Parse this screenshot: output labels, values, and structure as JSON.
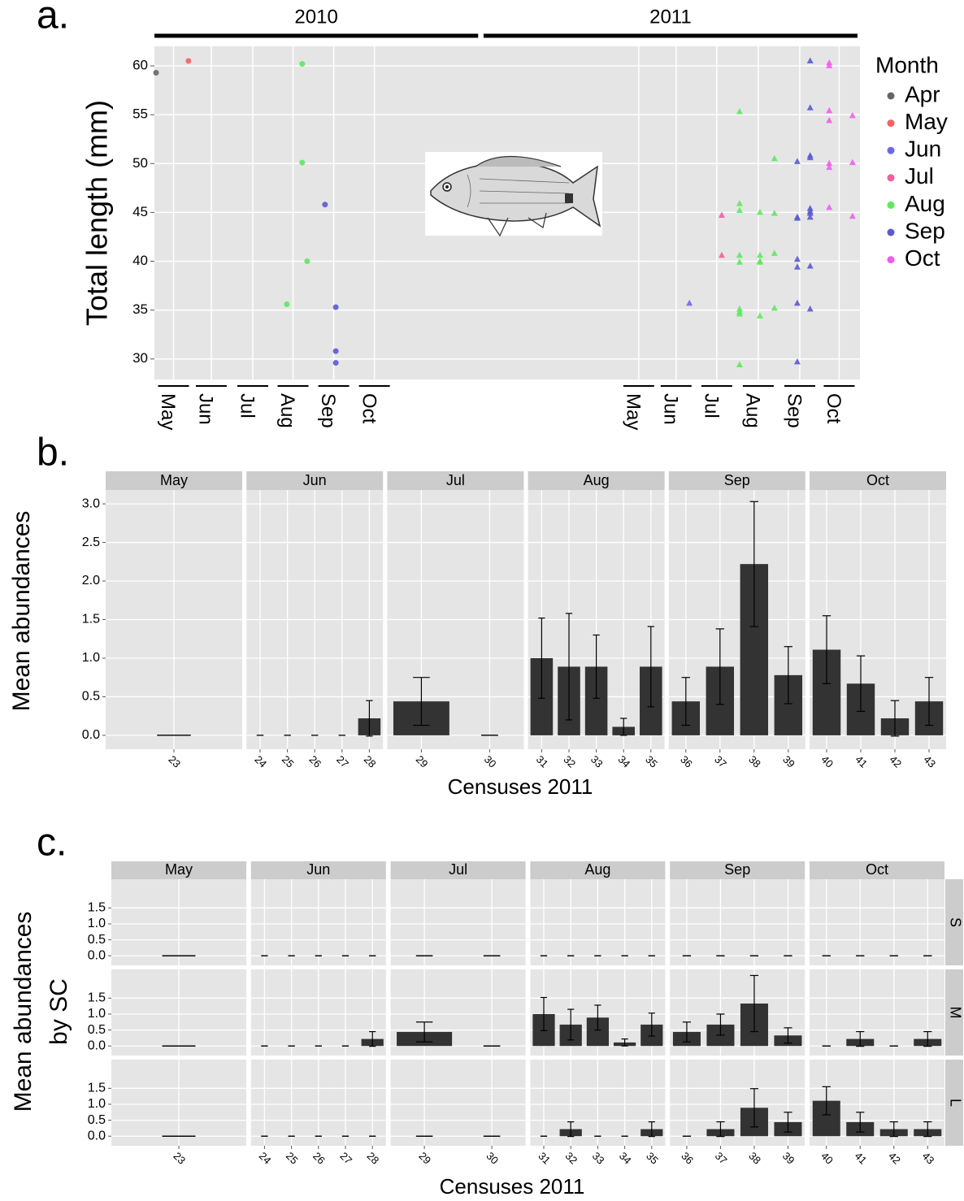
{
  "chart_data": [
    {
      "type": "scatter",
      "panel_label": "a.",
      "ylabel": "Total length (mm)",
      "legend_title": "Month",
      "xlim": [
        0,
        17
      ],
      "ylim": [
        27.9,
        62
      ],
      "yticks": [
        30,
        35,
        40,
        45,
        50,
        55,
        60
      ],
      "grid": true,
      "years": [
        {
          "label": "2010",
          "start": 0,
          "end": 7.8
        },
        {
          "label": "2011",
          "start": 7.93,
          "end": 16.94
        }
      ],
      "xticks": [
        {
          "value": 0.46,
          "label": "May"
        },
        {
          "value": 1.37,
          "label": "Jun"
        },
        {
          "value": 2.37,
          "label": "Jul"
        },
        {
          "value": 3.34,
          "label": "Aug"
        },
        {
          "value": 4.32,
          "label": "Sep"
        },
        {
          "value": 5.3,
          "label": "Oct"
        },
        {
          "value": 11.67,
          "label": "May"
        },
        {
          "value": 12.57,
          "label": "Jun"
        },
        {
          "value": 13.55,
          "label": "Jul"
        },
        {
          "value": 14.55,
          "label": "Aug"
        },
        {
          "value": 15.55,
          "label": "Sep"
        },
        {
          "value": 16.5,
          "label": "Oct"
        }
      ],
      "series": [
        {
          "name": "Apr",
          "color": "#666666",
          "x": [
            0.04
          ],
          "values": [
            59.3
          ]
        },
        {
          "name": "May",
          "color": "#f06464",
          "x": [
            0.82
          ],
          "values": [
            60.5
          ]
        },
        {
          "name": "Jun",
          "color": "#6a6ae8",
          "x": [
            12.89
          ],
          "values": [
            35.7
          ]
        },
        {
          "name": "Jul",
          "color": "#f0609c",
          "x": [
            13.67,
            13.67
          ],
          "values": [
            44.7,
            40.6
          ]
        },
        {
          "name": "Aug",
          "color": "#5ee85e",
          "x": [
            3.56,
            3.56,
            3.68,
            3.19,
            14.1,
            14.1,
            14.1,
            14.1,
            14.1,
            14.1,
            14.1,
            14.1,
            14.1,
            14.59,
            14.59,
            14.59,
            14.59,
            14.59,
            14.94,
            14.94,
            14.94,
            14.94
          ],
          "values": [
            60.2,
            50.1,
            40.0,
            35.6,
            55.3,
            45.9,
            45.2,
            40.6,
            39.9,
            35.1,
            34.8,
            34.6,
            29.4,
            45.0,
            40.6,
            40.0,
            39.9,
            34.4,
            50.5,
            44.9,
            40.8,
            35.2
          ]
        },
        {
          "name": "Sep",
          "color": "#5a5ad0",
          "x": [
            4.11,
            4.37,
            4.37,
            4.37,
            15.8,
            15.8,
            15.8,
            15.8,
            15.8,
            15.8,
            15.8,
            15.8,
            15.8,
            15.8,
            15.49,
            15.49,
            15.49,
            15.49,
            15.49,
            15.49,
            15.49
          ],
          "values": [
            45.8,
            35.3,
            30.8,
            29.6,
            60.5,
            55.7,
            50.8,
            50.6,
            45.4,
            45.1,
            44.9,
            44.5,
            39.5,
            35.1,
            50.2,
            44.5,
            44.4,
            40.2,
            39.4,
            35.7,
            29.7
          ]
        },
        {
          "name": "Oct",
          "color": "#ee5eee",
          "x": [
            16.26,
            16.26,
            16.26,
            16.26,
            16.26,
            16.26,
            16.26,
            16.82,
            16.82,
            16.82
          ],
          "values": [
            60.3,
            60.0,
            55.4,
            54.4,
            50.0,
            49.6,
            45.5,
            54.9,
            50.1,
            44.6
          ]
        }
      ]
    },
    {
      "type": "bar",
      "panel_label": "b.",
      "ylabel": "Mean abundances",
      "xlabel": "Censuses 2011",
      "ylim": [
        -0.18,
        3.18
      ],
      "yticks": [
        {
          "value": 0,
          "label": "0.0"
        },
        0.5,
        {
          "value": 1,
          "label": "1.0"
        },
        1.5,
        {
          "value": 2,
          "label": "2.0"
        },
        2.5,
        {
          "value": 3,
          "label": "3.0"
        }
      ],
      "grid": true,
      "facets": [
        {
          "name": "May",
          "categories": [
            "23"
          ],
          "values": [
            0
          ],
          "errors": [
            0
          ]
        },
        {
          "name": "Jun",
          "categories": [
            "24",
            "25",
            "26",
            "27",
            "28"
          ],
          "values": [
            0,
            0,
            0,
            0,
            0.22
          ],
          "errors": [
            0,
            0,
            0,
            0,
            0.23
          ]
        },
        {
          "name": "Jul",
          "categories": [
            "29",
            "30"
          ],
          "values": [
            0.44,
            0
          ],
          "errors": [
            0.31,
            0
          ]
        },
        {
          "name": "Aug",
          "categories": [
            "31",
            "32",
            "33",
            "34",
            "35"
          ],
          "values": [
            1.0,
            0.89,
            0.89,
            0.11,
            0.89
          ],
          "errors": [
            0.52,
            0.69,
            0.41,
            0.11,
            0.52
          ]
        },
        {
          "name": "Sep",
          "categories": [
            "36",
            "37",
            "38",
            "39"
          ],
          "values": [
            0.44,
            0.89,
            2.22,
            0.78
          ],
          "errors": [
            0.31,
            0.49,
            0.81,
            0.37
          ]
        },
        {
          "name": "Oct",
          "categories": [
            "40",
            "41",
            "42",
            "43"
          ],
          "values": [
            1.11,
            0.67,
            0.22,
            0.44
          ],
          "errors": [
            0.44,
            0.36,
            0.23,
            0.31
          ]
        }
      ]
    },
    {
      "type": "bar_grid",
      "panel_label": "c.",
      "ylabel": [
        "Mean abundances",
        "by SC"
      ],
      "xlabel": "Censuses 2011",
      "ylim": [
        -0.3,
        2.4
      ],
      "yticks": [
        {
          "value": 0,
          "label": "0.0"
        },
        0.5,
        {
          "value": 1,
          "label": "1.0"
        },
        1.5
      ],
      "grid": true,
      "facets": [
        {
          "name": "May",
          "categories": [
            "23"
          ]
        },
        {
          "name": "Jun",
          "categories": [
            "24",
            "25",
            "26",
            "27",
            "28"
          ]
        },
        {
          "name": "Jul",
          "categories": [
            "29",
            "30"
          ]
        },
        {
          "name": "Aug",
          "categories": [
            "31",
            "32",
            "33",
            "34",
            "35"
          ]
        },
        {
          "name": "Sep",
          "categories": [
            "36",
            "37",
            "38",
            "39"
          ]
        },
        {
          "name": "Oct",
          "categories": [
            "40",
            "41",
            "42",
            "43"
          ]
        }
      ],
      "rows": [
        {
          "name": "S",
          "values": [
            [
              0
            ],
            [
              0,
              0,
              0,
              0,
              0
            ],
            [
              0,
              0
            ],
            [
              0,
              0,
              0,
              0,
              0
            ],
            [
              0,
              0,
              0,
              0
            ],
            [
              0,
              0,
              0,
              0
            ]
          ],
          "errors": [
            [
              0
            ],
            [
              0,
              0,
              0,
              0,
              0
            ],
            [
              0,
              0
            ],
            [
              0,
              0,
              0,
              0,
              0
            ],
            [
              0,
              0,
              0,
              0
            ],
            [
              0,
              0,
              0,
              0
            ]
          ]
        },
        {
          "name": "M",
          "values": [
            [
              0
            ],
            [
              0,
              0,
              0,
              0,
              0.22
            ],
            [
              0.44,
              0
            ],
            [
              1.0,
              0.67,
              0.89,
              0.11,
              0.67
            ],
            [
              0.44,
              0.67,
              1.33,
              0.33
            ],
            [
              0,
              0.22,
              0,
              0.22
            ]
          ],
          "errors": [
            [
              0
            ],
            [
              0,
              0,
              0,
              0,
              0.23
            ],
            [
              0.31,
              0
            ],
            [
              0.52,
              0.48,
              0.39,
              0.11,
              0.36
            ],
            [
              0.31,
              0.33,
              0.88,
              0.24
            ],
            [
              0,
              0.23,
              0,
              0.23
            ]
          ]
        },
        {
          "name": "L",
          "values": [
            [
              0
            ],
            [
              0,
              0,
              0,
              0,
              0
            ],
            [
              0,
              0
            ],
            [
              0,
              0.22,
              0,
              0,
              0.22
            ],
            [
              0,
              0.22,
              0.89,
              0.44
            ],
            [
              1.11,
              0.44,
              0.22,
              0.22
            ]
          ],
          "errors": [
            [
              0
            ],
            [
              0,
              0,
              0,
              0,
              0
            ],
            [
              0,
              0
            ],
            [
              0,
              0.23,
              0,
              0,
              0.23
            ],
            [
              0,
              0.23,
              0.6,
              0.31
            ],
            [
              0.44,
              0.31,
              0.23,
              0.23
            ]
          ]
        }
      ]
    }
  ]
}
